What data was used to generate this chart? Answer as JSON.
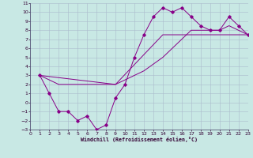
{
  "bg_color": "#c8e8e4",
  "grid_color": "#aabbcc",
  "line_color": "#880088",
  "xlim": [
    0,
    23
  ],
  "ylim": [
    -3,
    11
  ],
  "xticks": [
    0,
    1,
    2,
    3,
    4,
    5,
    6,
    7,
    8,
    9,
    10,
    11,
    12,
    13,
    14,
    15,
    16,
    17,
    18,
    19,
    20,
    21,
    22,
    23
  ],
  "yticks": [
    -3,
    -2,
    -1,
    0,
    1,
    2,
    3,
    4,
    5,
    6,
    7,
    8,
    9,
    10,
    11
  ],
  "xlabel": "Windchill (Refroidissement éolien,°C)",
  "curve1_x": [
    1,
    2,
    3,
    4,
    5,
    6,
    7,
    8,
    9,
    10,
    11,
    12,
    13,
    14,
    15,
    16,
    17,
    18,
    19,
    20,
    21,
    22,
    23
  ],
  "curve1_y": [
    3,
    1,
    -1,
    -1,
    -2,
    -1.5,
    -3,
    -2.5,
    0.5,
    2,
    5,
    7.5,
    9.5,
    10.5,
    10,
    10.5,
    9.5,
    8.5,
    8,
    8,
    9.5,
    8.5,
    7.5
  ],
  "curve2_x": [
    1,
    3,
    9,
    12,
    14,
    16,
    17,
    20,
    21,
    23
  ],
  "curve2_y": [
    3,
    2,
    2,
    3.5,
    5,
    7,
    8,
    8,
    8.5,
    7.5
  ],
  "curve3_x": [
    1,
    9,
    14,
    23
  ],
  "curve3_y": [
    3,
    2,
    7.5,
    7.5
  ]
}
